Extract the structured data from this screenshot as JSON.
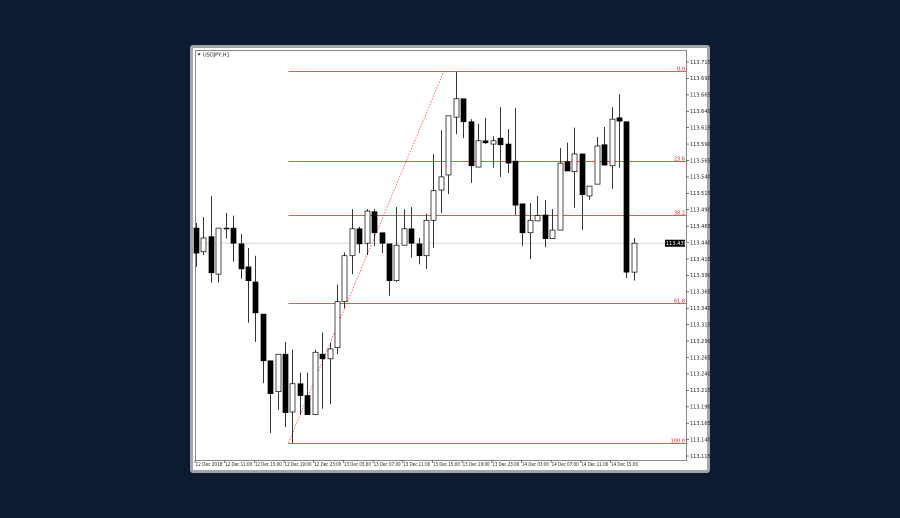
{
  "window": {
    "title": "USDJPY,H1"
  },
  "chart_data": {
    "type": "candlestick",
    "symbol": "USDJPY",
    "timeframe": "H1",
    "current_price": "113.439",
    "ylim": [
      113.115,
      113.715
    ],
    "y_ticks": [
      "113.715",
      "113.690",
      "113.665",
      "113.640",
      "113.615",
      "113.590",
      "113.565",
      "113.540",
      "113.515",
      "113.490",
      "113.465",
      "113.440",
      "113.415",
      "113.390",
      "113.365",
      "113.340",
      "113.315",
      "113.290",
      "113.265",
      "113.240",
      "113.215",
      "113.190",
      "113.165",
      "113.140",
      "113.115"
    ],
    "x_labels": [
      "12 Dec 2018",
      "12 Dec 11:00",
      "12 Dec 15:00",
      "12 Dec 19:00",
      "12 Dec 23:00",
      "13 Dec 03:00",
      "13 Dec 07:00",
      "13 Dec 11:00",
      "13 Dec 15:00",
      "13 Dec 19:00",
      "13 Dec 23:00",
      "14 Dec 03:00",
      "14 Dec 07:00",
      "14 Dec 11:00",
      "14 Dec 15:00"
    ],
    "fibonacci": {
      "levels": [
        {
          "label": "0.0",
          "price": 113.701
        },
        {
          "label": "23.6",
          "price": 113.565
        },
        {
          "label": "38.2",
          "price": 113.482
        },
        {
          "label": "61.8",
          "price": 113.348
        },
        {
          "label": "100.0",
          "price": 113.135
        }
      ],
      "anchor_low": 113.135,
      "anchor_high": 113.701
    },
    "colors": {
      "bull": "#ffffff",
      "bear": "#000000",
      "fib": "#ff4d4d",
      "grid_line": "#d9d9d9",
      "price_label_bg": "#000000"
    },
    "candles": [
      [
        113.462,
        113.47,
        113.403,
        113.424
      ],
      [
        113.426,
        113.479,
        113.421,
        113.447
      ],
      [
        113.449,
        113.511,
        113.379,
        113.394
      ],
      [
        113.392,
        113.462,
        113.379,
        113.462
      ],
      [
        113.462,
        113.485,
        113.446,
        113.461
      ],
      [
        113.462,
        113.481,
        113.411,
        113.439
      ],
      [
        113.438,
        113.453,
        113.385,
        113.4
      ],
      [
        113.403,
        113.432,
        113.318,
        113.382
      ],
      [
        113.38,
        113.42,
        113.289,
        113.333
      ],
      [
        113.331,
        113.331,
        113.226,
        113.26
      ],
      [
        113.26,
        113.26,
        113.15,
        113.21
      ],
      [
        113.213,
        113.27,
        113.185,
        113.27
      ],
      [
        113.27,
        113.289,
        113.159,
        113.181
      ],
      [
        113.182,
        113.277,
        113.135,
        113.225
      ],
      [
        113.225,
        113.242,
        113.178,
        113.207
      ],
      [
        113.207,
        113.242,
        113.178,
        113.178
      ],
      [
        113.178,
        113.277,
        113.178,
        113.273
      ],
      [
        113.27,
        113.303,
        113.187,
        113.263
      ],
      [
        113.263,
        113.287,
        113.194,
        113.278
      ],
      [
        113.28,
        113.376,
        113.27,
        113.35
      ],
      [
        113.35,
        113.425,
        113.34,
        113.42
      ],
      [
        113.42,
        113.491,
        113.392,
        113.461
      ],
      [
        113.461,
        113.464,
        113.424,
        113.438
      ],
      [
        113.439,
        113.491,
        113.421,
        113.488
      ],
      [
        113.487,
        113.491,
        113.435,
        113.455
      ],
      [
        113.455,
        113.455,
        113.424,
        113.439
      ],
      [
        113.438,
        113.438,
        113.359,
        113.382
      ],
      [
        113.382,
        113.494,
        113.38,
        113.436
      ],
      [
        113.436,
        113.491,
        113.436,
        113.461
      ],
      [
        113.461,
        113.494,
        113.417,
        113.439
      ],
      [
        113.438,
        113.447,
        113.407,
        113.42
      ],
      [
        113.42,
        113.484,
        113.4,
        113.474
      ],
      [
        113.474,
        113.575,
        113.432,
        113.519
      ],
      [
        113.52,
        113.611,
        113.485,
        113.54
      ],
      [
        113.543,
        113.633,
        113.514,
        113.633
      ],
      [
        113.631,
        113.7,
        113.605,
        113.659
      ],
      [
        113.659,
        113.659,
        113.599,
        113.624
      ],
      [
        113.624,
        113.628,
        113.531,
        113.557
      ],
      [
        113.555,
        113.621,
        113.555,
        113.595
      ],
      [
        113.595,
        113.63,
        113.59,
        113.592
      ],
      [
        113.59,
        113.602,
        113.554,
        113.595
      ],
      [
        113.599,
        113.646,
        113.54,
        113.589
      ],
      [
        113.59,
        113.613,
        113.546,
        113.561
      ],
      [
        113.564,
        113.645,
        113.482,
        113.497
      ],
      [
        113.499,
        113.499,
        113.435,
        113.455
      ],
      [
        113.455,
        113.5,
        113.415,
        113.474
      ],
      [
        113.473,
        113.511,
        113.473,
        113.481
      ],
      [
        113.482,
        113.505,
        113.433,
        113.446
      ],
      [
        113.446,
        113.491,
        113.446,
        113.459
      ],
      [
        113.459,
        113.584,
        113.459,
        113.561
      ],
      [
        113.563,
        113.592,
        113.549,
        113.549
      ],
      [
        113.548,
        113.615,
        113.493,
        113.575
      ],
      [
        113.575,
        113.575,
        113.459,
        113.513
      ],
      [
        113.511,
        113.526,
        113.505,
        113.526
      ],
      [
        113.529,
        113.601,
        113.529,
        113.587
      ],
      [
        113.589,
        113.616,
        113.558,
        113.558
      ],
      [
        113.557,
        113.646,
        113.522,
        113.628
      ],
      [
        113.63,
        113.666,
        113.554,
        113.625
      ],
      [
        113.624,
        113.624,
        113.386,
        113.395
      ],
      [
        113.395,
        113.447,
        113.382,
        113.439
      ]
    ],
    "candle_fields": [
      "open",
      "high",
      "low",
      "close"
    ]
  }
}
